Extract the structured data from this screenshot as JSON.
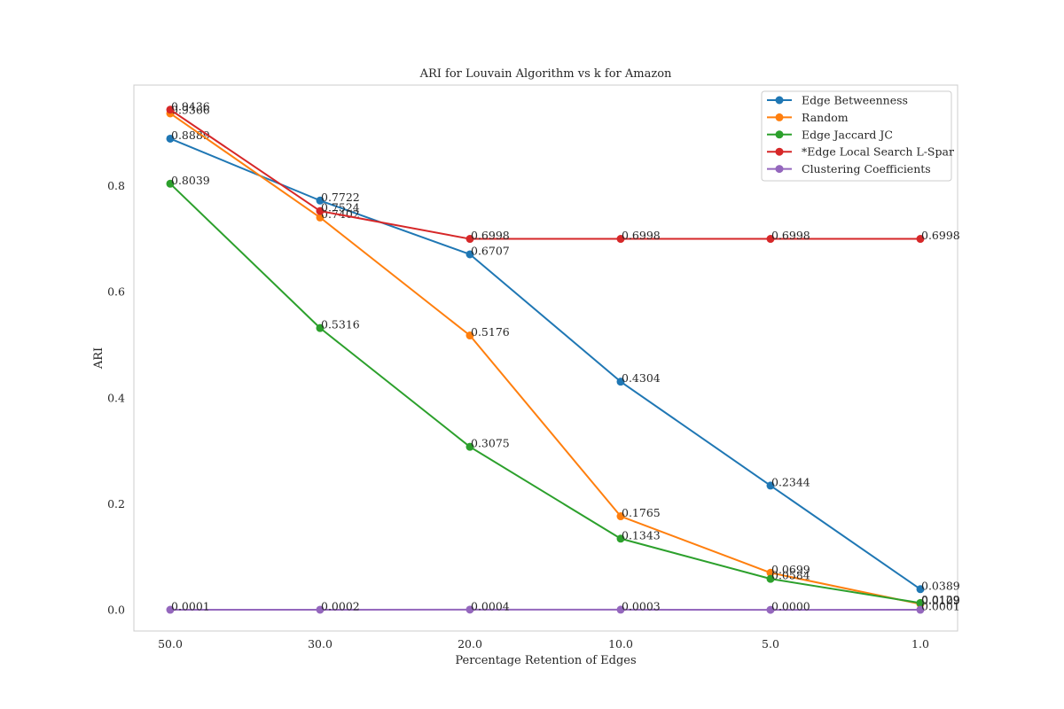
{
  "chart_data": {
    "type": "line",
    "title": "ARI for Louvain Algorithm vs k for Amazon",
    "xlabel": "Percentage Retention of Edges",
    "ylabel": "ARI",
    "categories": [
      "50.0",
      "30.0",
      "20.0",
      "10.0",
      "5.0",
      "1.0"
    ],
    "ylim": [
      -0.04,
      0.99
    ],
    "yticks": [
      "0.0",
      "0.2",
      "0.4",
      "0.6",
      "0.8"
    ],
    "grid": false,
    "legend_position": "top-right",
    "series": [
      {
        "name": "Edge Betweenness",
        "color": "#1f77b4",
        "values": [
          0.8889,
          0.7722,
          0.6707,
          0.4304,
          0.2344,
          0.0389
        ],
        "labels": [
          "0.8889",
          "0.7722",
          "0.6707",
          "0.4304",
          "0.2344",
          "0.0389"
        ]
      },
      {
        "name": "Random",
        "color": "#ff7f0e",
        "values": [
          0.9366,
          0.7402,
          0.5176,
          0.1765,
          0.0699,
          0.0109
        ],
        "labels": [
          "0.9366",
          "0.7402",
          "0.5176",
          "0.1765",
          "0.0699",
          "0.0109"
        ]
      },
      {
        "name": "Edge Jaccard JC",
        "color": "#2ca02c",
        "values": [
          0.8039,
          0.5316,
          0.3075,
          0.1343,
          0.0584,
          0.0129
        ],
        "labels": [
          "0.8039",
          "0.5316",
          "0.3075",
          "0.1343",
          "0.0584",
          "0.0129"
        ]
      },
      {
        "name": "*Edge Local Search L-Spar",
        "color": "#d62728",
        "values": [
          0.9436,
          0.7524,
          0.6998,
          0.6998,
          0.6998,
          0.6998
        ],
        "labels": [
          "0.9436",
          "0.7524",
          "0.6998",
          "0.6998",
          "0.6998",
          "0.6998"
        ]
      },
      {
        "name": "Clustering Coefficients",
        "color": "#9467bd",
        "values": [
          0.0001,
          0.0002,
          0.0004,
          0.0003,
          0.0,
          0.0001
        ],
        "labels": [
          "0.0001",
          "0.0002",
          "0.0004",
          "0.0003",
          "0.0000",
          "0.0001"
        ]
      }
    ]
  }
}
